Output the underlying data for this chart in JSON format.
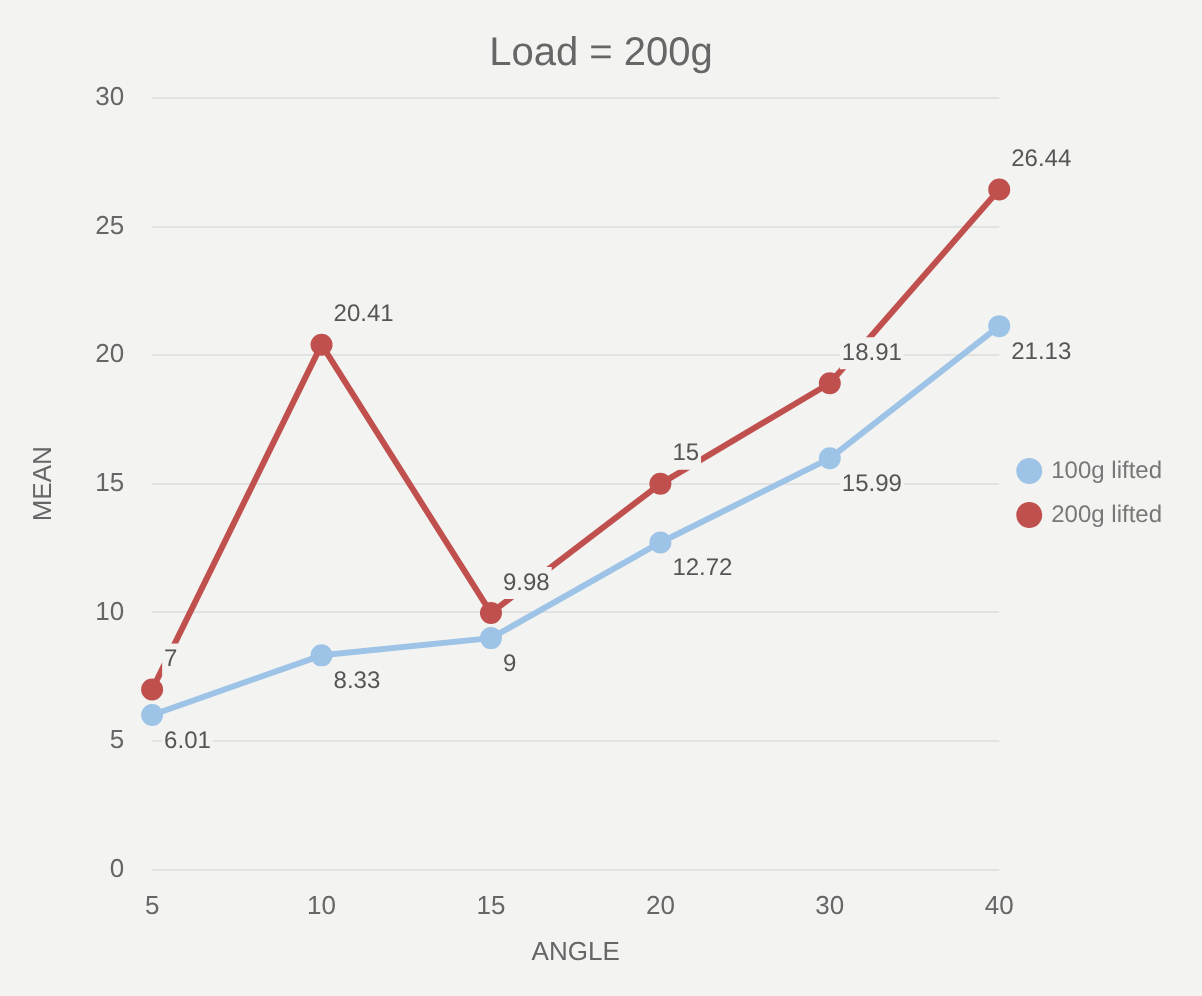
{
  "chart_data": {
    "type": "line",
    "title": "Load = 200g",
    "xlabel": "ANGLE",
    "ylabel": "MEAN",
    "categories": [
      "5",
      "10",
      "15",
      "20",
      "30",
      "40"
    ],
    "series": [
      {
        "name": "100g lifted",
        "color": "#9dc3e6",
        "values": [
          6.01,
          8.33,
          9,
          12.72,
          15.99,
          21.13
        ]
      },
      {
        "name": "200g lifted",
        "color": "#c0504d",
        "values": [
          7,
          20.41,
          9.98,
          15,
          18.91,
          26.44
        ]
      }
    ],
    "ylim": [
      0,
      30
    ],
    "yticks": [
      0,
      5,
      10,
      15,
      20,
      25,
      30
    ],
    "grid": "y",
    "legend": "right",
    "marker": "circle",
    "data_labels": true
  }
}
